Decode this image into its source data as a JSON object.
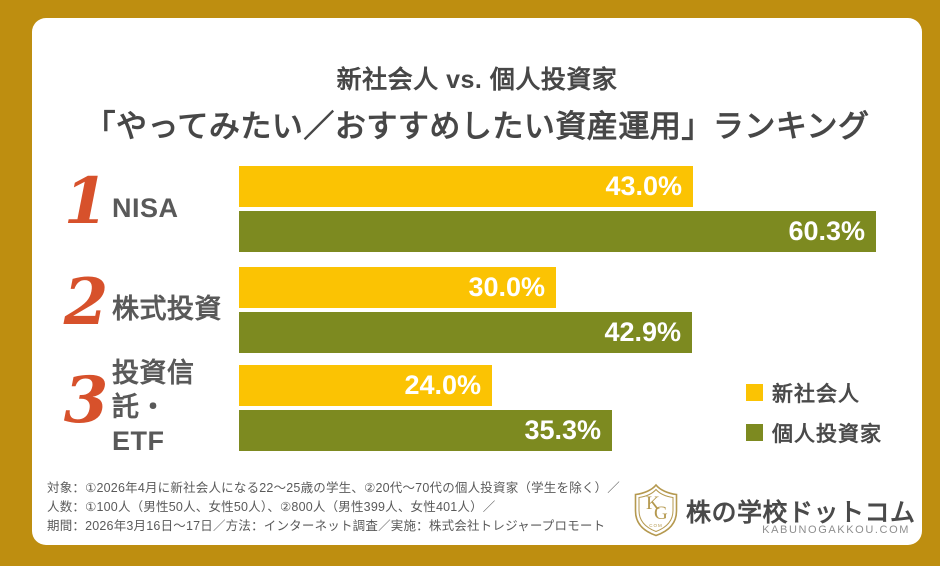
{
  "title": {
    "line1": "新社会人 vs. 個人投資家",
    "line2": "「やってみたい／おすすめしたい資産運用」ランキング"
  },
  "chart_data": {
    "type": "bar",
    "orientation": "horizontal",
    "title": "新社会人 vs. 個人投資家「やってみたい／おすすめしたい資産運用」ランキング",
    "categories": [
      "NISA",
      "株式投資",
      "投資信託・ETF"
    ],
    "series": [
      {
        "name": "新社会人",
        "color": "#FBC303",
        "values": [
          43.0,
          30.0,
          24.0
        ]
      },
      {
        "name": "個人投資家",
        "color": "#7D8A20",
        "values": [
          60.3,
          42.9,
          35.3
        ]
      }
    ],
    "xlim": [
      0,
      62
    ],
    "grid": false,
    "legend_position": "right-bottom",
    "rows": [
      {
        "rank": "1",
        "label": "NISA",
        "label_line2": "",
        "a_pct": 43.0,
        "a_label": "43.0%",
        "b_pct": 60.3,
        "b_label": "60.3%"
      },
      {
        "rank": "2",
        "label": "株式投資",
        "label_line2": "",
        "a_pct": 30.0,
        "a_label": "30.0%",
        "b_pct": 42.9,
        "b_label": "42.9%"
      },
      {
        "rank": "3",
        "label": "投資信託・",
        "label_line2": "ETF",
        "a_pct": 24.0,
        "a_label": "24.0%",
        "b_pct": 35.3,
        "b_label": "35.3%"
      }
    ]
  },
  "legend": {
    "items": [
      {
        "label": "新社会人",
        "color": "#FBC303"
      },
      {
        "label": "個人投資家",
        "color": "#7D8A20"
      }
    ]
  },
  "footer": {
    "line1": "対象：①2026年4月に新社会人になる22〜25歳の学生、②20代〜70代の個人投資家（学生を除く）／",
    "line2": "人数：①100人（男性50人、女性50人）、②800人（男性399人、女性401人）／",
    "line3": "期間：2026年3月16日〜17日／方法：インターネット調査／実施：株式会社トレジャープロモート"
  },
  "logo": {
    "name": "株の学校ドットコム",
    "domain": "KABUNOGAKKOU.COM",
    "crest_letter_k": "K",
    "crest_letter_g": "G",
    "crest_sub": "COM"
  },
  "colors": {
    "frame_gold": "#BE8E10",
    "card_white": "#FFFFFF",
    "bar_yellow": "#FBC303",
    "bar_olive": "#7D8A20",
    "rank_red": "#D7512B",
    "title_gray": "#474747",
    "label_gray": "#595959",
    "footer_gray": "#5A5A5A",
    "crest_gold": "#B5994F"
  }
}
